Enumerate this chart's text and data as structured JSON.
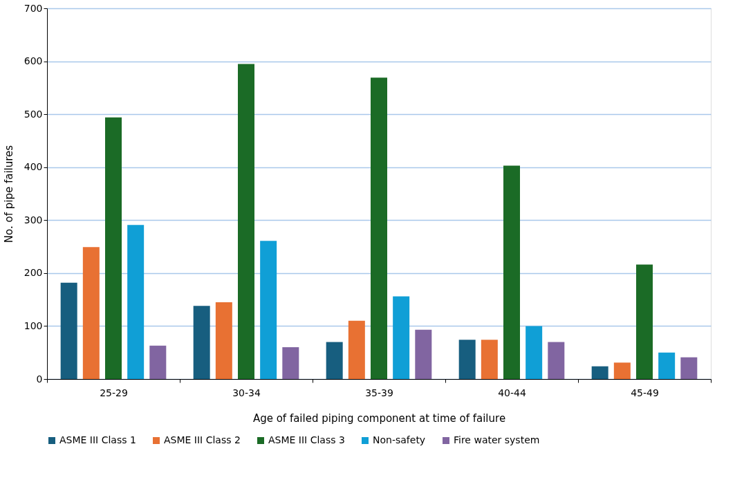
{
  "chart_data": {
    "type": "bar",
    "xlabel": "Age of failed piping component at time of failure",
    "ylabel": "No. of pipe failures",
    "categories": [
      "25-29",
      "30-34",
      "35-39",
      "40-44",
      "45-49"
    ],
    "series": [
      {
        "name": "ASME III Class 1",
        "color": "#175e7f",
        "values": [
          182,
          138,
          70,
          74,
          24
        ]
      },
      {
        "name": "ASME III Class 2",
        "color": "#e87133",
        "values": [
          249,
          145,
          110,
          74,
          31
        ]
      },
      {
        "name": "ASME III Class 3",
        "color": "#1b6b26",
        "values": [
          494,
          595,
          569,
          403,
          216
        ]
      },
      {
        "name": "Non-safety",
        "color": "#109fd6",
        "values": [
          291,
          261,
          156,
          100,
          50
        ]
      },
      {
        "name": "Fire water system",
        "color": "#8165a1",
        "values": [
          63,
          60,
          93,
          70,
          41
        ]
      }
    ],
    "ylim": [
      0,
      700
    ],
    "yticks": [
      0,
      100,
      200,
      300,
      400,
      500,
      600,
      700
    ],
    "grid": "y",
    "legend": "bottom"
  }
}
